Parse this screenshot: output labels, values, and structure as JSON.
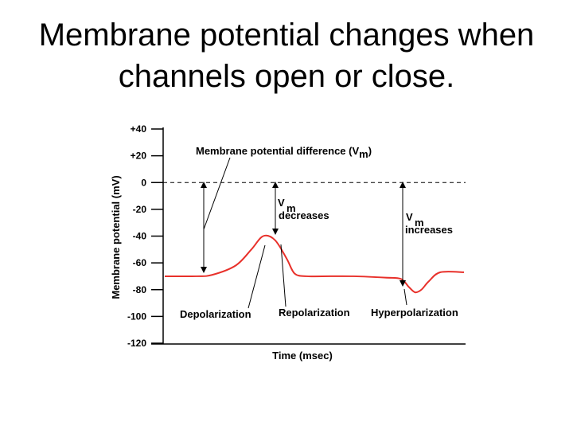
{
  "slide": {
    "title_line1": "Membrane potential changes when",
    "title_line2": "channels open or close."
  },
  "chart_data": {
    "type": "line",
    "title": "",
    "xlabel": "Time (msec)",
    "ylabel": "Membrane potential (mV)",
    "ylim": [
      -120,
      40
    ],
    "yticks": [
      {
        "value": 40,
        "label": "+40"
      },
      {
        "value": 20,
        "label": "+20"
      },
      {
        "value": 0,
        "label": "0"
      },
      {
        "value": -20,
        "label": "-20"
      },
      {
        "value": -40,
        "label": "-40"
      },
      {
        "value": -60,
        "label": "-60"
      },
      {
        "value": -80,
        "label": "-80"
      },
      {
        "value": -100,
        "label": "-100"
      },
      {
        "value": -120,
        "label": "-120"
      }
    ],
    "reference_line": {
      "value": 0,
      "style": "dashed"
    },
    "grid": false,
    "series": [
      {
        "color": "#e8302a",
        "x": [
          0,
          40,
          60,
          90,
          110,
          125,
          140,
          155,
          165,
          180,
          200,
          240,
          280,
          300,
          310,
          318,
          326,
          335,
          350,
          380
        ],
        "y": [
          -70,
          -70,
          -69,
          -62,
          -50,
          -40,
          -43,
          -57,
          -68,
          -70,
          -70,
          -70,
          -71,
          -72,
          -78,
          -82,
          -80,
          -74,
          -67,
          -67
        ]
      }
    ],
    "annotations": {
      "vm_difference": {
        "text": "Membrane potential difference (V",
        "sub": "m",
        "close": ")"
      },
      "decreases": {
        "v": "V",
        "sub": "m",
        "text": "decreases"
      },
      "increases": {
        "v": "V",
        "sub": "m",
        "text": "increases"
      },
      "depolarization": "Depolarization",
      "repolarization": "Repolarization",
      "hyperpolarization": "Hyperpolarization"
    },
    "colors": {
      "curve": "#e8302a",
      "axis": "#000000"
    }
  }
}
